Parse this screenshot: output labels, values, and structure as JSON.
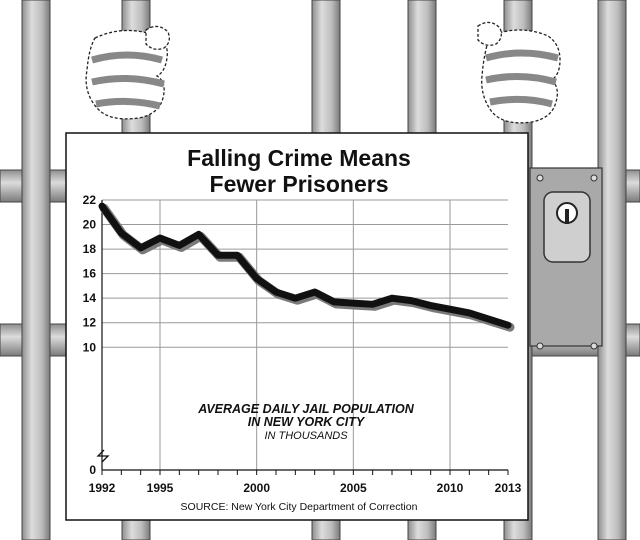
{
  "chart_data": {
    "type": "line",
    "title": "Falling Crime Means Fewer Prisoners",
    "title_lines": [
      "Falling Crime Means",
      "Fewer Prisoners"
    ],
    "annotation": {
      "line1": "AVERAGE DAILY JAIL POPULATION",
      "line2": "IN NEW YORK CITY",
      "line3": "IN THOUSANDS"
    },
    "source": "SOURCE: New York City Department of Correction",
    "x_tick_labels": [
      "1992",
      "1995",
      "2000",
      "2005",
      "2010",
      "2013"
    ],
    "x_ticks": [
      1992,
      1995,
      2000,
      2005,
      2010,
      2013
    ],
    "y_tick_labels": [
      "0",
      "10",
      "12",
      "14",
      "16",
      "18",
      "20",
      "22"
    ],
    "y_ticks": [
      0,
      10,
      12,
      14,
      16,
      18,
      20,
      22
    ],
    "xlim": [
      1992,
      2013
    ],
    "ylim": [
      0,
      22
    ],
    "y_axis_break": true,
    "grid": true,
    "series": [
      {
        "x": [
          1992,
          1993,
          1994,
          1995,
          1996,
          1997,
          1998,
          1999,
          2000,
          2001,
          2002,
          2003,
          2004,
          2005,
          2006,
          2007,
          2008,
          2009,
          2010,
          2011,
          2012,
          2013
        ],
        "values": [
          21.5,
          19.3,
          18.1,
          18.9,
          18.3,
          19.2,
          17.5,
          17.5,
          15.6,
          14.5,
          14.0,
          14.5,
          13.7,
          13.6,
          13.5,
          14.0,
          13.8,
          13.4,
          13.1,
          12.8,
          12.3,
          11.8
        ]
      }
    ],
    "colors": {
      "line": "#111111",
      "grid": "#9a9a9a",
      "bars": "#c9c9c9",
      "lock_box": "#a9a9a9"
    }
  }
}
